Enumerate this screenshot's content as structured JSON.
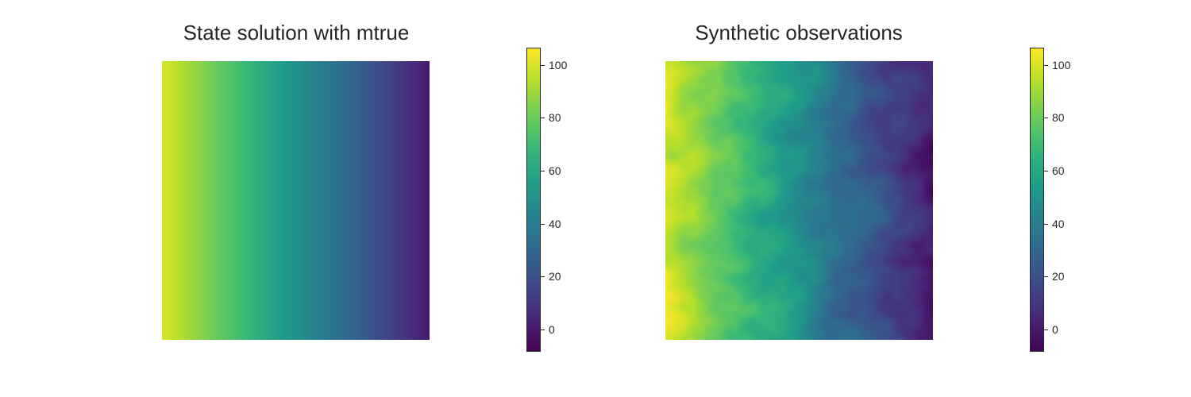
{
  "chart_data": [
    {
      "type": "heatmap",
      "title": "State solution with mtrue",
      "colormap": "viridis",
      "colorbar": {
        "vmin": -8,
        "vmax": 106,
        "ticks": [
          "0",
          "20",
          "40",
          "60",
          "80",
          "100"
        ]
      },
      "field": {
        "kind": "linear-x",
        "value_at_left": 100,
        "value_at_right": 0,
        "noise": false
      }
    },
    {
      "type": "heatmap",
      "title": "Synthetic observations",
      "colormap": "viridis",
      "colorbar": {
        "vmin": -8,
        "vmax": 106,
        "ticks": [
          "0",
          "20",
          "40",
          "60",
          "80",
          "100"
        ]
      },
      "field": {
        "kind": "linear-x",
        "value_at_left": 100,
        "value_at_right": 0,
        "noise": true
      }
    }
  ]
}
